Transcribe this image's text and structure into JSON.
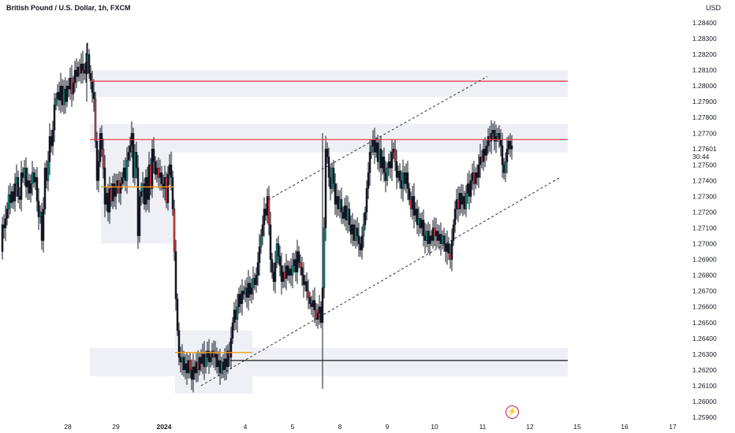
{
  "header": {
    "title": "British Pound / U.S. Dollar, 1h, FXCM",
    "currency": "USD"
  },
  "price_axis": {
    "labels": [
      "1.28400",
      "1.28300",
      "1.28200",
      "1.28100",
      "1.28000",
      "1.27900",
      "1.27800",
      "1.27700",
      "1.27500",
      "1.27400",
      "1.27300",
      "1.27200",
      "1.27100",
      "1.27000",
      "1.26900",
      "1.26800",
      "1.26700",
      "1.26600",
      "1.26500",
      "1.26400",
      "1.26300",
      "1.26200",
      "1.26100",
      "1.26000",
      "1.25900"
    ],
    "current_price": "1.27601",
    "countdown": "30:44"
  },
  "time_axis": {
    "labels": [
      "28",
      "29",
      "2024",
      "4",
      "5",
      "8",
      "9",
      "10",
      "11",
      "12",
      "15",
      "16",
      "17"
    ]
  },
  "icons": {
    "alert": "lightning-icon"
  },
  "colors": {
    "bull": "#089981",
    "bear": "#f23645",
    "resistance_line": "#f23645",
    "support_line": "#131722",
    "level_line": "#f59c1a",
    "zone_fill": "#eef0f5",
    "channel": "#131722"
  },
  "chart_data": {
    "type": "candlestick",
    "symbol": "GBPUSD",
    "title": "British Pound / U.S. Dollar, 1h, FXCM",
    "ylabel": "USD",
    "ylim": [
      1.2588,
      1.2847
    ],
    "x_dates": [
      "28",
      "29",
      "2024",
      "4",
      "5",
      "8",
      "9",
      "10",
      "11",
      "12",
      "15",
      "16",
      "17"
    ],
    "close_path": [
      [
        0,
        1.2695
      ],
      [
        2,
        1.2712
      ],
      [
        4,
        1.271
      ],
      [
        6,
        1.2716
      ],
      [
        8,
        1.2722
      ],
      [
        10,
        1.2731
      ],
      [
        12,
        1.2726
      ],
      [
        14,
        1.2733
      ],
      [
        16,
        1.2727
      ],
      [
        18,
        1.2738
      ],
      [
        20,
        1.2742
      ],
      [
        22,
        1.273
      ],
      [
        24,
        1.2728
      ],
      [
        26,
        1.2745
      ],
      [
        28,
        1.2742
      ],
      [
        30,
        1.2748
      ],
      [
        32,
        1.2736
      ],
      [
        34,
        1.274
      ],
      [
        36,
        1.2732
      ],
      [
        38,
        1.2738
      ],
      [
        40,
        1.2745
      ],
      [
        42,
        1.2739
      ],
      [
        44,
        1.2742
      ],
      [
        46,
        1.2727
      ],
      [
        48,
        1.2717
      ],
      [
        50,
        1.272
      ],
      [
        52,
        1.2702
      ],
      [
        54,
        1.2722
      ],
      [
        56,
        1.2748
      ],
      [
        58,
        1.274
      ],
      [
        60,
        1.2752
      ],
      [
        62,
        1.2768
      ],
      [
        64,
        1.2762
      ],
      [
        66,
        1.2772
      ],
      [
        68,
        1.2788
      ],
      [
        70,
        1.2792
      ],
      [
        72,
        1.2796
      ],
      [
        74,
        1.2791
      ],
      [
        76,
        1.28
      ],
      [
        78,
        1.2788
      ],
      [
        80,
        1.2798
      ],
      [
        82,
        1.279
      ],
      [
        84,
        1.28
      ],
      [
        86,
        1.2798
      ],
      [
        88,
        1.2805
      ],
      [
        90,
        1.2795
      ],
      [
        92,
        1.2802
      ],
      [
        94,
        1.281
      ],
      [
        96,
        1.2806
      ],
      [
        98,
        1.2812
      ],
      [
        100,
        1.2808
      ],
      [
        102,
        1.2814
      ],
      [
        104,
        1.281
      ],
      [
        106,
        1.2808
      ],
      [
        108,
        1.2815
      ],
      [
        110,
        1.282
      ],
      [
        112,
        1.2808
      ],
      [
        114,
        1.2803
      ],
      [
        116,
        1.2796
      ],
      [
        118,
        1.2792
      ],
      [
        120,
        1.2765
      ],
      [
        122,
        1.274
      ],
      [
        124,
        1.2752
      ],
      [
        126,
        1.277
      ],
      [
        128,
        1.276
      ],
      [
        130,
        1.2748
      ],
      [
        132,
        1.2725
      ],
      [
        134,
        1.2732
      ],
      [
        136,
        1.272
      ],
      [
        138,
        1.2735
      ],
      [
        140,
        1.2727
      ],
      [
        142,
        1.2738
      ],
      [
        144,
        1.273
      ],
      [
        146,
        1.2736
      ],
      [
        148,
        1.274
      ],
      [
        150,
        1.2732
      ],
      [
        152,
        1.2738
      ],
      [
        154,
        1.2742
      ],
      [
        156,
        1.2748
      ],
      [
        158,
        1.274
      ],
      [
        160,
        1.2753
      ],
      [
        162,
        1.2758
      ],
      [
        164,
        1.2762
      ],
      [
        166,
        1.277
      ],
      [
        168,
        1.2742
      ],
      [
        170,
        1.2758
      ],
      [
        172,
        1.2748
      ],
      [
        174,
        1.2705
      ],
      [
        176,
        1.273
      ],
      [
        178,
        1.2733
      ],
      [
        180,
        1.2738
      ],
      [
        182,
        1.2725
      ],
      [
        184,
        1.2742
      ],
      [
        186,
        1.2728
      ],
      [
        188,
        1.275
      ],
      [
        190,
        1.2735
      ],
      [
        192,
        1.276
      ],
      [
        194,
        1.2752
      ],
      [
        196,
        1.2744
      ],
      [
        198,
        1.2748
      ],
      [
        200,
        1.2742
      ],
      [
        202,
        1.2745
      ],
      [
        204,
        1.2738
      ],
      [
        206,
        1.2735
      ],
      [
        208,
        1.2742
      ],
      [
        210,
        1.2726
      ],
      [
        212,
        1.2744
      ],
      [
        214,
        1.275
      ],
      [
        216,
        1.2742
      ],
      [
        218,
        1.2722
      ],
      [
        220,
        1.2695
      ],
      [
        222,
        1.2665
      ],
      [
        224,
        1.2645
      ],
      [
        226,
        1.2628
      ],
      [
        228,
        1.2625
      ],
      [
        230,
        1.2628
      ],
      [
        232,
        1.262
      ],
      [
        234,
        1.2624
      ],
      [
        236,
        1.2618
      ],
      [
        238,
        1.2626
      ],
      [
        240,
        1.262
      ],
      [
        242,
        1.2614
      ],
      [
        244,
        1.2622
      ],
      [
        246,
        1.2618
      ],
      [
        248,
        1.2625
      ],
      [
        250,
        1.262
      ],
      [
        252,
        1.2628
      ],
      [
        254,
        1.2624
      ],
      [
        256,
        1.263
      ],
      [
        258,
        1.2622
      ],
      [
        260,
        1.2628
      ],
      [
        262,
        1.2632
      ],
      [
        264,
        1.2625
      ],
      [
        266,
        1.2628
      ],
      [
        268,
        1.2632
      ],
      [
        270,
        1.2628
      ],
      [
        272,
        1.263
      ],
      [
        274,
        1.2622
      ],
      [
        276,
        1.2626
      ],
      [
        278,
        1.2618
      ],
      [
        280,
        1.2625
      ],
      [
        282,
        1.262
      ],
      [
        284,
        1.2627
      ],
      [
        286,
        1.2622
      ],
      [
        288,
        1.2632
      ],
      [
        290,
        1.2628
      ],
      [
        292,
        1.264
      ],
      [
        294,
        1.265
      ],
      [
        296,
        1.2658
      ],
      [
        298,
        1.2652
      ],
      [
        300,
        1.266
      ],
      [
        302,
        1.2668
      ],
      [
        304,
        1.2662
      ],
      [
        306,
        1.267
      ],
      [
        308,
        1.2668
      ],
      [
        310,
        1.2672
      ],
      [
        312,
        1.2666
      ],
      [
        314,
        1.2675
      ],
      [
        316,
        1.2668
      ],
      [
        318,
        1.2672
      ],
      [
        320,
        1.2678
      ],
      [
        322,
        1.2674
      ],
      [
        324,
        1.268
      ],
      [
        326,
        1.2688
      ],
      [
        328,
        1.2698
      ],
      [
        330,
        1.2705
      ],
      [
        332,
        1.2712
      ],
      [
        334,
        1.2722
      ],
      [
        336,
        1.2718
      ],
      [
        338,
        1.273
      ],
      [
        340,
        1.2712
      ],
      [
        342,
        1.269
      ],
      [
        344,
        1.2682
      ],
      [
        346,
        1.2676
      ],
      [
        348,
        1.2688
      ],
      [
        350,
        1.27
      ],
      [
        352,
        1.2692
      ],
      [
        354,
        1.2686
      ],
      [
        356,
        1.2676
      ],
      [
        358,
        1.2682
      ],
      [
        360,
        1.2678
      ],
      [
        362,
        1.2686
      ],
      [
        364,
        1.268
      ],
      [
        366,
        1.2684
      ],
      [
        368,
        1.268
      ],
      [
        370,
        1.2686
      ],
      [
        372,
        1.269
      ],
      [
        374,
        1.2682
      ],
      [
        376,
        1.2695
      ],
      [
        378,
        1.2688
      ],
      [
        380,
        1.2685
      ],
      [
        382,
        1.268
      ],
      [
        384,
        1.2674
      ],
      [
        386,
        1.2676
      ],
      [
        388,
        1.267
      ],
      [
        390,
        1.2666
      ],
      [
        392,
        1.2662
      ],
      [
        394,
        1.266
      ],
      [
        396,
        1.2664
      ],
      [
        398,
        1.2658
      ],
      [
        400,
        1.2652
      ],
      [
        402,
        1.2656
      ],
      [
        404,
        1.266
      ],
      [
        406,
        1.265
      ],
      [
        408,
        1.2672
      ],
      [
        410,
        1.271
      ],
      [
        412,
        1.276
      ],
      [
        414,
        1.2755
      ],
      [
        416,
        1.2742
      ],
      [
        418,
        1.2735
      ],
      [
        420,
        1.2748
      ],
      [
        422,
        1.2738
      ],
      [
        424,
        1.2725
      ],
      [
        426,
        1.273
      ],
      [
        428,
        1.2722
      ],
      [
        430,
        1.2728
      ],
      [
        432,
        1.272
      ],
      [
        434,
        1.2716
      ],
      [
        436,
        1.2724
      ],
      [
        438,
        1.2715
      ],
      [
        440,
        1.2722
      ],
      [
        442,
        1.2712
      ],
      [
        444,
        1.2706
      ],
      [
        446,
        1.2712
      ],
      [
        448,
        1.2702
      ],
      [
        450,
        1.271
      ],
      [
        452,
        1.2705
      ],
      [
        454,
        1.27
      ],
      [
        456,
        1.2696
      ],
      [
        458,
        1.2705
      ],
      [
        460,
        1.2712
      ],
      [
        462,
        1.272
      ],
      [
        464,
        1.2735
      ],
      [
        466,
        1.2745
      ],
      [
        468,
        1.2758
      ],
      [
        470,
        1.2762
      ],
      [
        472,
        1.2766
      ],
      [
        474,
        1.2758
      ],
      [
        476,
        1.2764
      ],
      [
        478,
        1.2752
      ],
      [
        480,
        1.276
      ],
      [
        482,
        1.2748
      ],
      [
        484,
        1.2755
      ],
      [
        486,
        1.2745
      ],
      [
        488,
        1.274
      ],
      [
        490,
        1.2748
      ],
      [
        492,
        1.2752
      ],
      [
        494,
        1.2748
      ],
      [
        496,
        1.2758
      ],
      [
        498,
        1.276
      ],
      [
        500,
        1.2752
      ],
      [
        502,
        1.2742
      ],
      [
        504,
        1.2746
      ],
      [
        506,
        1.274
      ],
      [
        508,
        1.2735
      ],
      [
        510,
        1.2745
      ],
      [
        512,
        1.2738
      ],
      [
        514,
        1.2745
      ],
      [
        516,
        1.2735
      ],
      [
        518,
        1.2728
      ],
      [
        520,
        1.2722
      ],
      [
        522,
        1.273
      ],
      [
        524,
        1.2718
      ],
      [
        526,
        1.2722
      ],
      [
        528,
        1.2712
      ],
      [
        530,
        1.2716
      ],
      [
        532,
        1.271
      ],
      [
        534,
        1.2715
      ],
      [
        536,
        1.2705
      ],
      [
        538,
        1.2702
      ],
      [
        540,
        1.2708
      ],
      [
        542,
        1.27
      ],
      [
        544,
        1.2705
      ],
      [
        546,
        1.2702
      ],
      [
        548,
        1.271
      ],
      [
        550,
        1.2705
      ],
      [
        552,
        1.2708
      ],
      [
        554,
        1.2702
      ],
      [
        556,
        1.2706
      ],
      [
        558,
        1.27
      ],
      [
        560,
        1.2705
      ],
      [
        562,
        1.27
      ],
      [
        564,
        1.2695
      ],
      [
        566,
        1.27
      ],
      [
        568,
        1.2694
      ],
      [
        570,
        1.269
      ],
      [
        572,
        1.2702
      ],
      [
        574,
        1.2712
      ],
      [
        576,
        1.2722
      ],
      [
        578,
        1.2728
      ],
      [
        580,
        1.2722
      ],
      [
        582,
        1.2732
      ],
      [
        584,
        1.2725
      ],
      [
        586,
        1.273
      ],
      [
        588,
        1.2722
      ],
      [
        590,
        1.2732
      ],
      [
        592,
        1.2738
      ],
      [
        594,
        1.273
      ],
      [
        596,
        1.274
      ],
      [
        598,
        1.2745
      ],
      [
        600,
        1.2738
      ],
      [
        602,
        1.2745
      ],
      [
        604,
        1.2742
      ],
      [
        606,
        1.275
      ],
      [
        608,
        1.2755
      ],
      [
        610,
        1.2752
      ],
      [
        612,
        1.276
      ],
      [
        614,
        1.2756
      ],
      [
        616,
        1.2762
      ],
      [
        618,
        1.2768
      ],
      [
        620,
        1.2765
      ],
      [
        622,
        1.277
      ],
      [
        624,
        1.2772
      ],
      [
        626,
        1.2765
      ],
      [
        628,
        1.2768
      ],
      [
        630,
        1.277
      ],
      [
        632,
        1.2766
      ],
      [
        634,
        1.2762
      ],
      [
        636,
        1.275
      ],
      [
        638,
        1.2745
      ],
      [
        640,
        1.2752
      ],
      [
        642,
        1.276
      ],
      [
        644,
        1.2765
      ],
      [
        646,
        1.276
      ],
      [
        648,
        1.2762
      ]
    ],
    "annotations": {
      "resistance_lines": [
        1.2803,
        1.2766
      ],
      "support_line": 1.2626,
      "orange_levels": [
        1.2736,
        1.2631
      ],
      "zones": [
        [
          1.2793,
          1.281
        ],
        [
          1.2758,
          1.2776
        ],
        [
          1.2616,
          1.2634
        ]
      ],
      "ascending_channel": {
        "upper": [
          [
            340,
            1.2728
          ],
          [
            618,
            1.2806
          ]
        ],
        "lower": [
          [
            255,
            1.261
          ],
          [
            710,
            1.2742
          ]
        ]
      }
    }
  }
}
